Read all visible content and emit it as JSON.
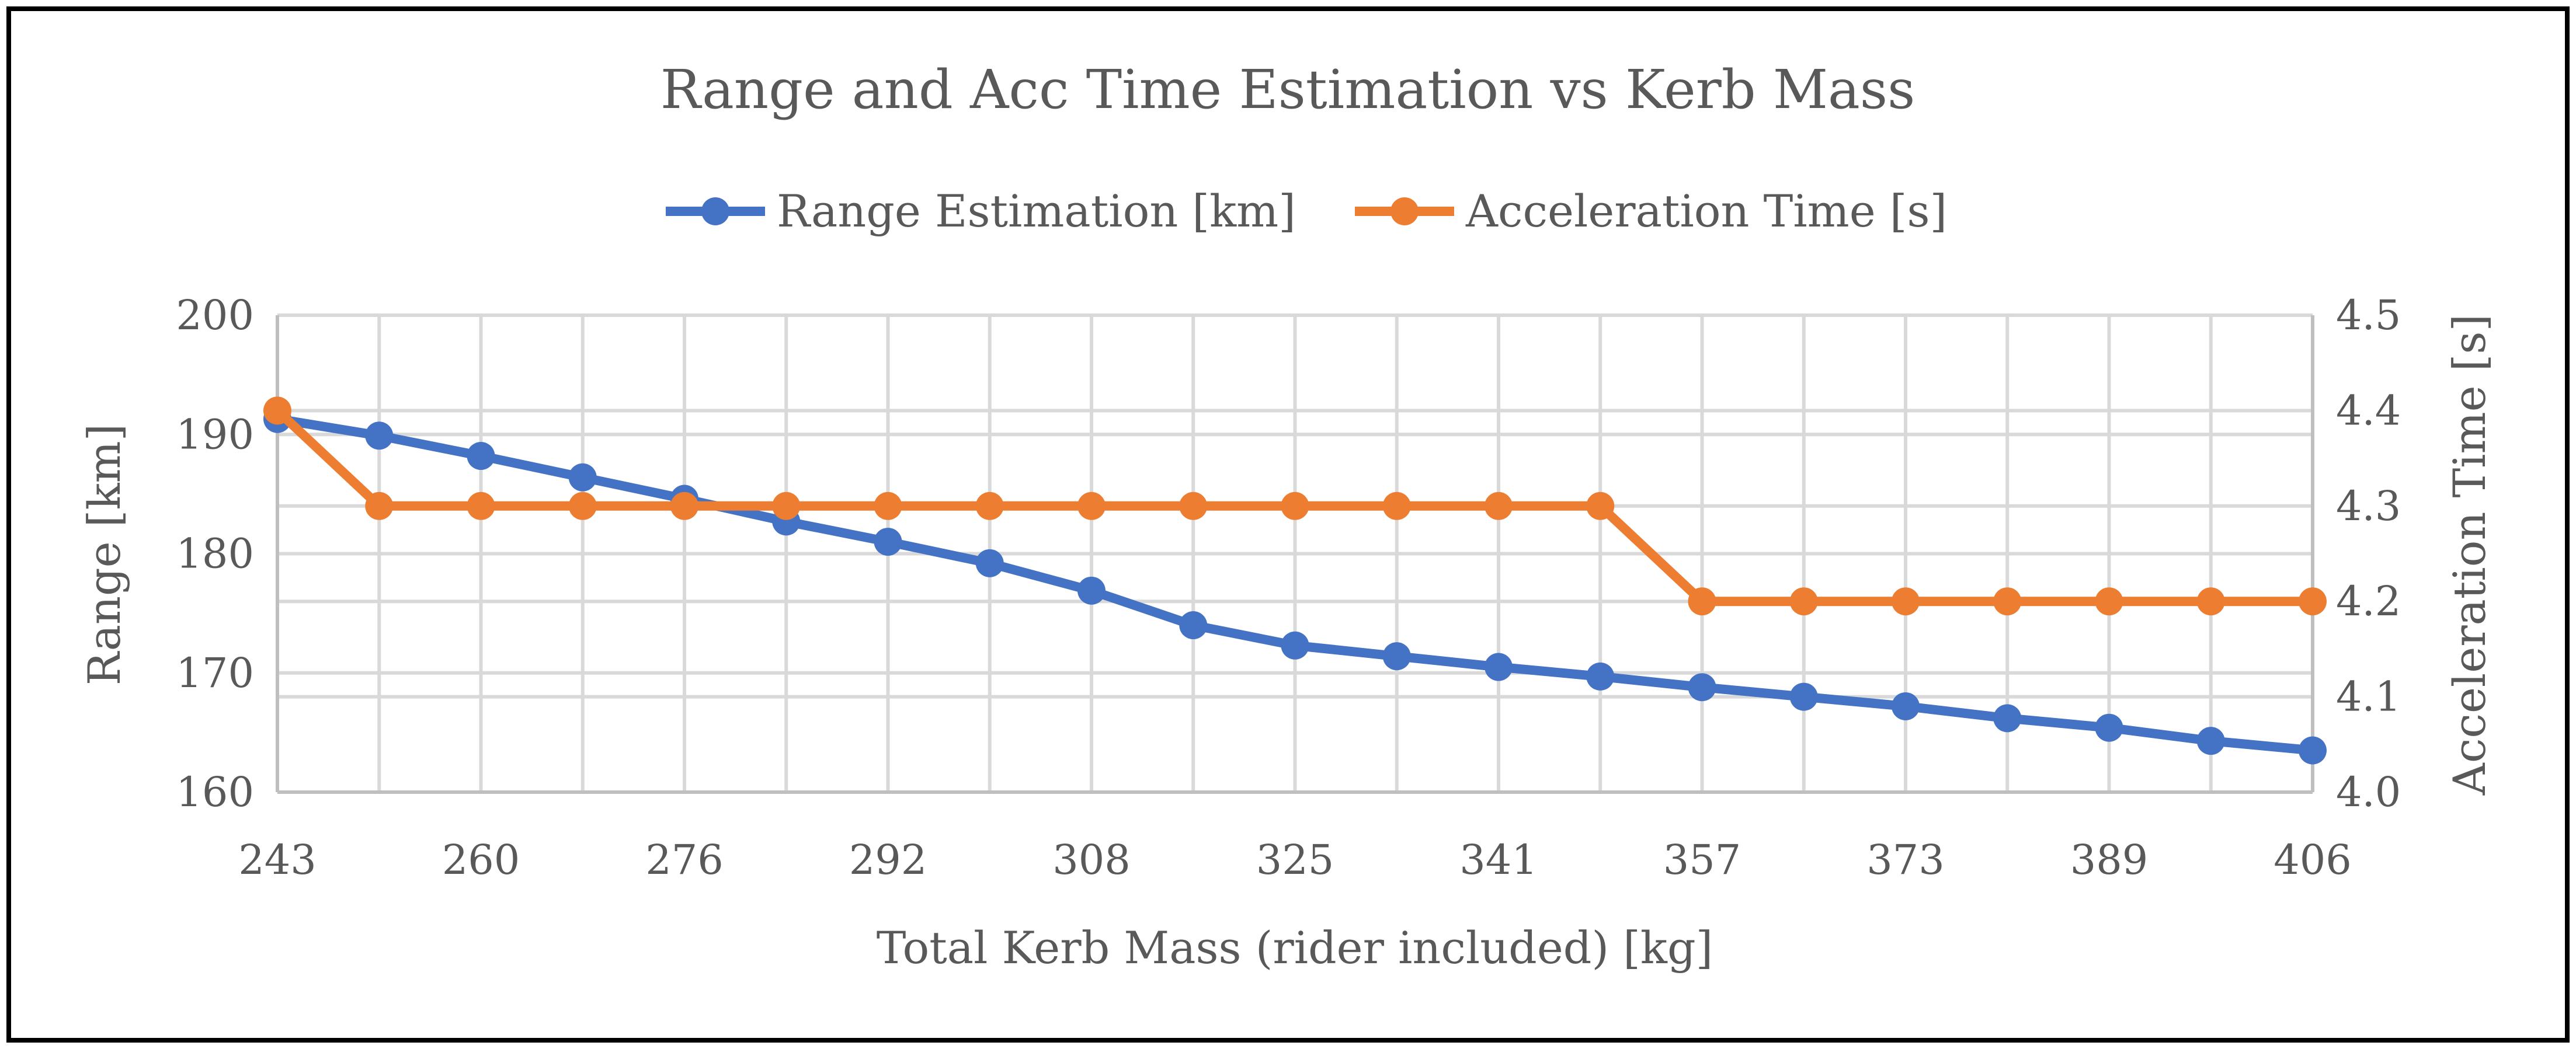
{
  "chart_data": {
    "type": "line",
    "title": "Range and Acc Time Estimation vs Kerb Mass",
    "xlabel": "Total Kerb Mass (rider included) [kg]",
    "ylabel": "Range [km]",
    "y2label": "Acceleration Time [s]",
    "categories": [
      243,
      251,
      260,
      268,
      276,
      284,
      292,
      300,
      308,
      316,
      325,
      333,
      341,
      349,
      357,
      365,
      373,
      381,
      389,
      397,
      406
    ],
    "x_tick_labels": [
      "243",
      "",
      "260",
      "",
      "276",
      "",
      "292",
      "",
      "308",
      "",
      "325",
      "",
      "341",
      "",
      "357",
      "",
      "373",
      "",
      "389",
      "",
      "406"
    ],
    "ylim": [
      160,
      200
    ],
    "yticks": [
      "160",
      "170",
      "180",
      "190",
      "200"
    ],
    "y2lim": [
      4.0,
      4.5
    ],
    "y2ticks": [
      "4.0",
      "4.1",
      "4.2",
      "4.3",
      "4.4",
      "4.5"
    ],
    "grid": true,
    "legend_position": "top",
    "series": [
      {
        "name": "Range Estimation [km]",
        "axis": "left",
        "color": "#4472C4",
        "values": [
          191.3,
          189.9,
          188.2,
          186.4,
          184.6,
          182.7,
          181.0,
          179.2,
          176.9,
          174.0,
          172.3,
          171.4,
          170.5,
          169.7,
          168.8,
          168.0,
          167.2,
          166.2,
          165.4,
          164.3,
          163.5
        ]
      },
      {
        "name": "Acceleration Time [s]",
        "axis": "right",
        "color": "#ED7D31",
        "values": [
          4.4,
          4.3,
          4.3,
          4.3,
          4.3,
          4.3,
          4.3,
          4.3,
          4.3,
          4.3,
          4.3,
          4.3,
          4.3,
          4.3,
          4.2,
          4.2,
          4.2,
          4.2,
          4.2,
          4.2,
          4.2
        ]
      }
    ]
  }
}
